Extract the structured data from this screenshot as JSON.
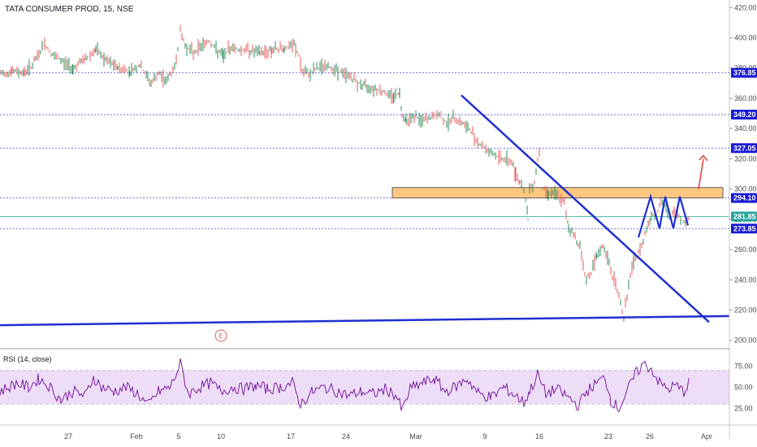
{
  "chart": {
    "title": "TATA CONSUMER PROD, 15, NSE",
    "rsi_title": "RSI (14, close)",
    "event_marker": "E"
  },
  "chart_data": {
    "type": "line",
    "price_axis": {
      "ticks": [
        420,
        400,
        380,
        360,
        340,
        320,
        300,
        280,
        260,
        240,
        220,
        200
      ],
      "ylim": [
        195,
        425
      ]
    },
    "rsi_axis": {
      "ticks": [
        75,
        50,
        25
      ],
      "ylim": [
        8,
        95
      ],
      "band": [
        30,
        70
      ]
    },
    "x_ticks": [
      "27",
      "Feb",
      "5",
      "10",
      "17",
      "24",
      "Mar",
      "9",
      "16",
      "23",
      "26",
      "Apr"
    ],
    "horizontal_levels": [
      {
        "label": "376.85",
        "value": 376.85
      },
      {
        "label": "349.20",
        "value": 349.2
      },
      {
        "label": "327.05",
        "value": 327.05
      },
      {
        "label": "294.10",
        "value": 294.1
      },
      {
        "label": "273.85",
        "value": 273.85
      }
    ],
    "last_price": {
      "label": "281.85",
      "value": 281.85
    },
    "resistance_zone": [
      294.1,
      301
    ],
    "price_series": [
      [
        0,
        376
      ],
      [
        15,
        378
      ],
      [
        30,
        377
      ],
      [
        40,
        382
      ],
      [
        55,
        396
      ],
      [
        65,
        388
      ],
      [
        75,
        385
      ],
      [
        90,
        380
      ],
      [
        105,
        386
      ],
      [
        118,
        392
      ],
      [
        130,
        385
      ],
      [
        145,
        380
      ],
      [
        160,
        378
      ],
      [
        172,
        382
      ],
      [
        180,
        375
      ],
      [
        186,
        370
      ],
      [
        195,
        376
      ],
      [
        205,
        372
      ],
      [
        215,
        380
      ],
      [
        222,
        404
      ],
      [
        228,
        395
      ],
      [
        238,
        390
      ],
      [
        248,
        395
      ],
      [
        258,
        398
      ],
      [
        266,
        392
      ],
      [
        275,
        388
      ],
      [
        285,
        394
      ],
      [
        295,
        392
      ],
      [
        305,
        392
      ],
      [
        320,
        390
      ],
      [
        335,
        392
      ],
      [
        350,
        393
      ],
      [
        362,
        395
      ],
      [
        368,
        388
      ],
      [
        372,
        377
      ],
      [
        380,
        376
      ],
      [
        390,
        380
      ],
      [
        400,
        381
      ],
      [
        410,
        380
      ],
      [
        420,
        377
      ],
      [
        430,
        375
      ],
      [
        440,
        370
      ],
      [
        450,
        368
      ],
      [
        460,
        367
      ],
      [
        470,
        365
      ],
      [
        478,
        362
      ],
      [
        485,
        362
      ],
      [
        492,
        363
      ],
      [
        495,
        350
      ],
      [
        500,
        346
      ],
      [
        510,
        348
      ],
      [
        520,
        345
      ],
      [
        530,
        347
      ],
      [
        540,
        349
      ],
      [
        550,
        344
      ],
      [
        560,
        347
      ],
      [
        570,
        343
      ],
      [
        580,
        338
      ],
      [
        590,
        330
      ],
      [
        600,
        326
      ],
      [
        610,
        322
      ],
      [
        620,
        320
      ],
      [
        630,
        318
      ],
      [
        635,
        310
      ],
      [
        640,
        305
      ],
      [
        645,
        300
      ],
      [
        650,
        280
      ],
      [
        652,
        300
      ],
      [
        658,
        305
      ],
      [
        664,
        326
      ],
      [
        668,
        300
      ],
      [
        675,
        298
      ],
      [
        685,
        296
      ],
      [
        695,
        290
      ],
      [
        700,
        275
      ],
      [
        708,
        268
      ],
      [
        714,
        262
      ],
      [
        718,
        250
      ],
      [
        722,
        240
      ],
      [
        728,
        245
      ],
      [
        735,
        255
      ],
      [
        742,
        262
      ],
      [
        748,
        255
      ],
      [
        752,
        245
      ],
      [
        758,
        238
      ],
      [
        762,
        228
      ],
      [
        766,
        220
      ],
      [
        768,
        215
      ],
      [
        772,
        230
      ],
      [
        778,
        248
      ],
      [
        784,
        256
      ],
      [
        790,
        262
      ],
      [
        796,
        275
      ],
      [
        802,
        282
      ],
      [
        808,
        284
      ],
      [
        814,
        290
      ],
      [
        820,
        288
      ],
      [
        826,
        282
      ],
      [
        832,
        285
      ],
      [
        838,
        280
      ],
      [
        844,
        278
      ],
      [
        850,
        282
      ]
    ],
    "rsi_series": [
      [
        0,
        45
      ],
      [
        20,
        55
      ],
      [
        35,
        50
      ],
      [
        48,
        60
      ],
      [
        60,
        52
      ],
      [
        75,
        35
      ],
      [
        90,
        45
      ],
      [
        105,
        40
      ],
      [
        115,
        62
      ],
      [
        125,
        50
      ],
      [
        140,
        45
      ],
      [
        155,
        50
      ],
      [
        170,
        42
      ],
      [
        182,
        28
      ],
      [
        195,
        45
      ],
      [
        210,
        50
      ],
      [
        222,
        78
      ],
      [
        232,
        42
      ],
      [
        245,
        50
      ],
      [
        260,
        55
      ],
      [
        272,
        45
      ],
      [
        285,
        50
      ],
      [
        300,
        48
      ],
      [
        315,
        52
      ],
      [
        330,
        48
      ],
      [
        345,
        50
      ],
      [
        360,
        55
      ],
      [
        370,
        30
      ],
      [
        385,
        45
      ],
      [
        400,
        50
      ],
      [
        415,
        45
      ],
      [
        430,
        40
      ],
      [
        445,
        45
      ],
      [
        460,
        42
      ],
      [
        475,
        48
      ],
      [
        488,
        40
      ],
      [
        495,
        22
      ],
      [
        505,
        48
      ],
      [
        520,
        55
      ],
      [
        535,
        60
      ],
      [
        548,
        45
      ],
      [
        560,
        50
      ],
      [
        575,
        60
      ],
      [
        590,
        42
      ],
      [
        605,
        38
      ],
      [
        620,
        50
      ],
      [
        635,
        40
      ],
      [
        645,
        32
      ],
      [
        652,
        45
      ],
      [
        662,
        65
      ],
      [
        672,
        42
      ],
      [
        685,
        48
      ],
      [
        700,
        38
      ],
      [
        712,
        28
      ],
      [
        722,
        45
      ],
      [
        735,
        55
      ],
      [
        745,
        62
      ],
      [
        752,
        35
      ],
      [
        762,
        25
      ],
      [
        772,
        45
      ],
      [
        782,
        65
      ],
      [
        792,
        78
      ],
      [
        802,
        72
      ],
      [
        812,
        55
      ],
      [
        822,
        48
      ],
      [
        832,
        52
      ],
      [
        842,
        45
      ],
      [
        850,
        58
      ]
    ],
    "trendlines": [
      {
        "from": [
          0,
          210
        ],
        "to": [
          898,
          216
        ]
      },
      {
        "from": [
          568,
          362
        ],
        "to": [
          873,
          212
        ]
      }
    ],
    "zigzag": [
      [
        786,
        268
      ],
      [
        801,
        295
      ],
      [
        812,
        274
      ],
      [
        819,
        295
      ],
      [
        829,
        274
      ],
      [
        837,
        295
      ],
      [
        847,
        276
      ]
    ],
    "arrow": {
      "from": [
        860,
        300
      ],
      "to": [
        866,
        322
      ]
    },
    "colors": {
      "candles": "#e05a5a",
      "candles_up": "#2e8b57",
      "trendline": "#1f2fd0",
      "zone_fill": "#ffc680",
      "level_line": "#4a4ee0",
      "last_price": "#26a69a",
      "rsi_line": "#7b1fa2",
      "rsi_band": "#e8d5f5",
      "arrow": "#e53935"
    }
  }
}
